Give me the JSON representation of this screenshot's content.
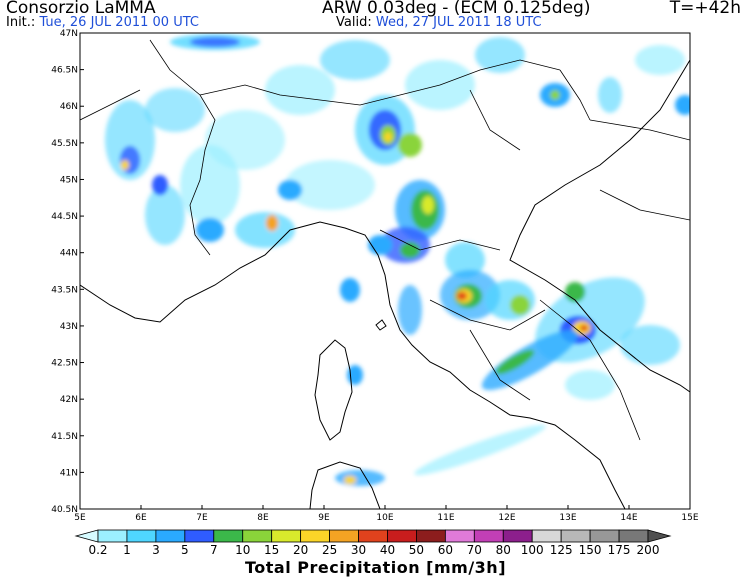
{
  "header": {
    "org": "Consorzio LaMMA",
    "model": "ARW 0.03deg - (ECM 0.125deg)",
    "lead": "T=+42h",
    "init_label": "Init.:",
    "init_value": "Tue, 26 JUL 2011   00 UTC",
    "valid_label": "Valid:",
    "valid_value": "Wed, 27 JUL 2011   18 UTC"
  },
  "axes": {
    "lat_labels": [
      "47N",
      "46.5N",
      "46N",
      "45.5N",
      "45N",
      "44.5N",
      "44N",
      "43.5N",
      "43N",
      "42.5N",
      "42N",
      "41.5N",
      "41N",
      "40.5N"
    ],
    "lon_labels": [
      "5E",
      "6E",
      "7E",
      "8E",
      "9E",
      "10E",
      "11E",
      "12E",
      "13E",
      "14E",
      "15E"
    ]
  },
  "colorbar": {
    "title": "Total Precipitation [mm/3h]",
    "labels": [
      "0.2",
      "1",
      "3",
      "5",
      "7",
      "10",
      "15",
      "20",
      "25",
      "30",
      "40",
      "50",
      "60",
      "70",
      "80",
      "100",
      "125",
      "150",
      "175",
      "200"
    ],
    "colors": [
      "#d6fbff",
      "#9cf0ff",
      "#4fd6ff",
      "#2aaaff",
      "#2f5cff",
      "#3bb84a",
      "#8ad43a",
      "#d9ea2c",
      "#fbd528",
      "#f4a323",
      "#e0421d",
      "#c81d1d",
      "#8c1d1d",
      "#e07ad9",
      "#c23fb6",
      "#8c1f8c",
      "#d8d8d8",
      "#b8b8b8",
      "#989898",
      "#787878",
      "#505050"
    ]
  },
  "regions": {
    "land": "#ffffff",
    "sea": "#ffffff",
    "coast": "#000000"
  }
}
